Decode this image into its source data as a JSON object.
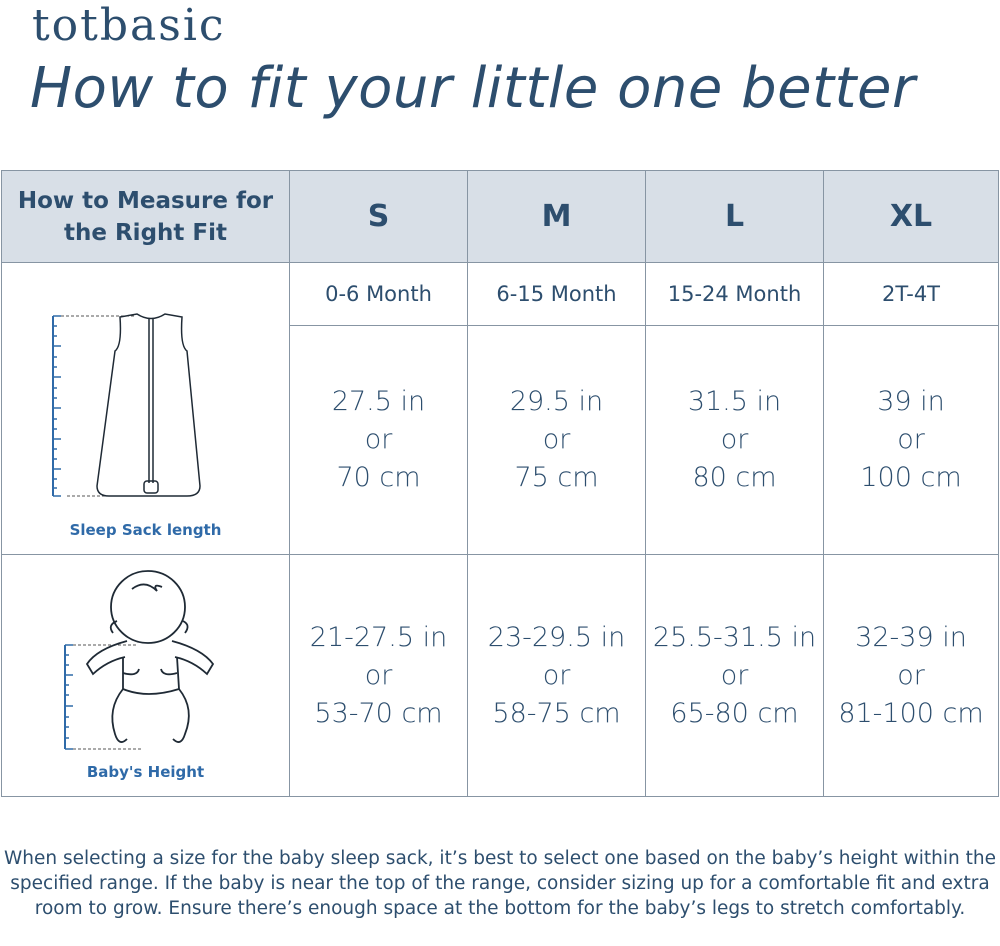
{
  "brand": "totbasic",
  "title": "How to fit your little one better",
  "table": {
    "header": {
      "measure": "How to Measure for the Right Fit",
      "sizes": [
        "S",
        "M",
        "L",
        "XL"
      ]
    },
    "ages": [
      "0-6 Month",
      "6-15 Month",
      "15-24 Month",
      "2T-4T"
    ],
    "sleep_sack": {
      "caption": "Sleep Sack length",
      "values": [
        {
          "in": "27.5 in",
          "or": "or",
          "cm": "70 cm"
        },
        {
          "in": "29.5 in",
          "or": "or",
          "cm": "75 cm"
        },
        {
          "in": "31.5 in",
          "or": "or",
          "cm": "80 cm"
        },
        {
          "in": "39 in",
          "or": "or",
          "cm": "100 cm"
        }
      ]
    },
    "height": {
      "caption": "Baby's Height",
      "values": [
        {
          "in": "21-27.5 in",
          "or": "or",
          "cm": "53-70 cm"
        },
        {
          "in": "23-29.5 in",
          "or": "or",
          "cm": "58-75 cm"
        },
        {
          "in": "25.5-31.5 in",
          "or": "or",
          "cm": "65-80 cm"
        },
        {
          "in": "32-39 in",
          "or": "or",
          "cm": "81-100 cm"
        }
      ]
    }
  },
  "note": "When selecting a size for the baby sleep sack, it’s best to select one based on the baby’s height within the specified range. If the baby is near the top of the range, consider sizing up for a comfortable fit and extra room to grow. Ensure there’s enough space at the bottom for the baby’s legs to stretch comfortably.",
  "colors": {
    "text": "#2d4e6e",
    "header_bg": "#d8dfe7",
    "caption": "#2f6aa8",
    "border": "#8795a3"
  }
}
